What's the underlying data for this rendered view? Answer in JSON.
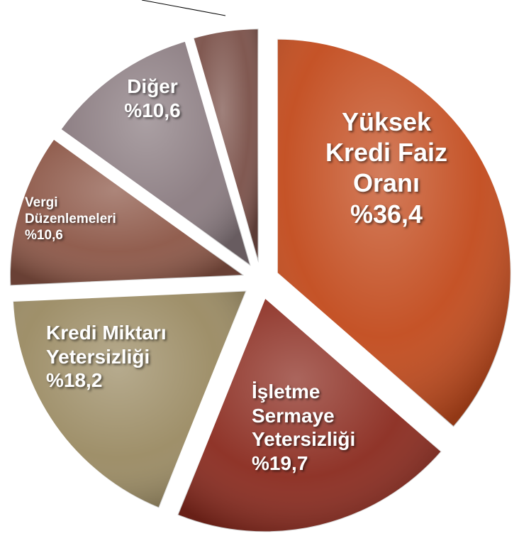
{
  "chart_data": {
    "type": "pie",
    "categories": [
      "Yüksek Kredi Faiz Oranı",
      "İşletme Sermaye Yetersizliği",
      "Kredi Miktarı Yetersizliği",
      "Vergi Düzenlemeleri",
      "Diğer",
      null
    ],
    "values": [
      36.4,
      19.7,
      18.2,
      10.6,
      10.6,
      4.5
    ],
    "value_labels": [
      "%36,4",
      "%19,7",
      "%18,2",
      "%10,6",
      "%10,6",
      null
    ],
    "colors": [
      "#c24a1c",
      "#8a2a1e",
      "#9a8a62",
      "#8c5646",
      "#8a7b80",
      "#7a5048"
    ]
  }
}
